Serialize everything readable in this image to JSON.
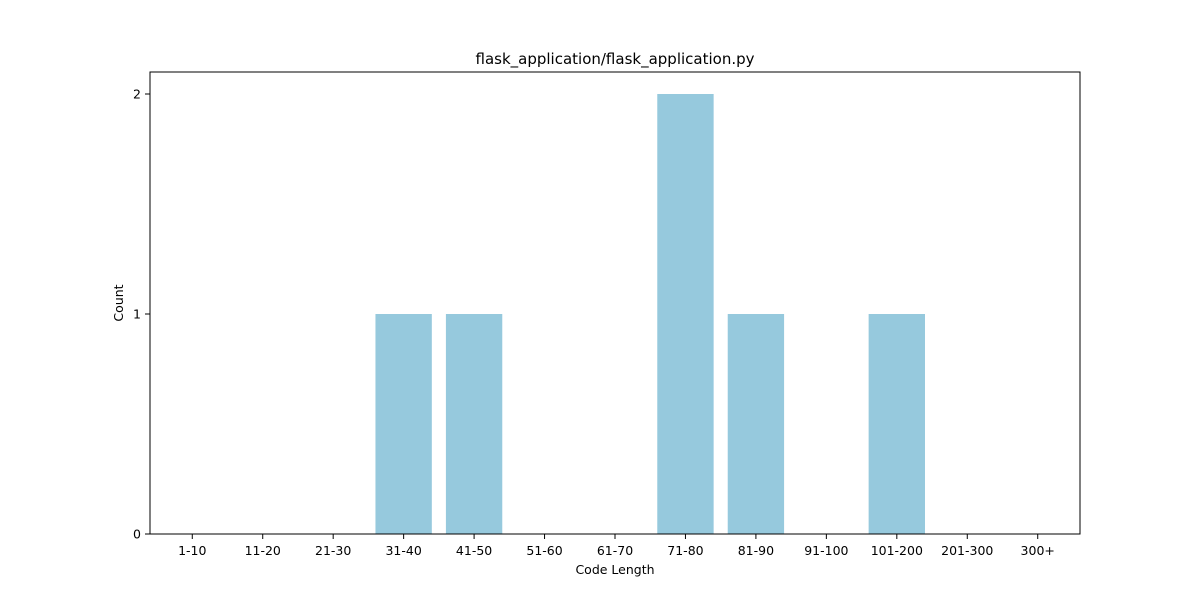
{
  "chart_data": {
    "type": "bar",
    "title": "flask_application/flask_application.py",
    "xlabel": "Code Length",
    "ylabel": "Count",
    "categories": [
      "1-10",
      "11-20",
      "21-30",
      "31-40",
      "41-50",
      "51-60",
      "61-70",
      "71-80",
      "81-90",
      "91-100",
      "101-200",
      "201-300",
      "300+"
    ],
    "values": [
      0,
      0,
      0,
      1,
      1,
      0,
      0,
      2,
      1,
      0,
      1,
      0,
      0
    ],
    "ylim": [
      0,
      2.1
    ],
    "yticks": [
      "0",
      "1",
      "2"
    ],
    "bar_color": "#96c9dd",
    "grid": false,
    "legend": "none"
  }
}
